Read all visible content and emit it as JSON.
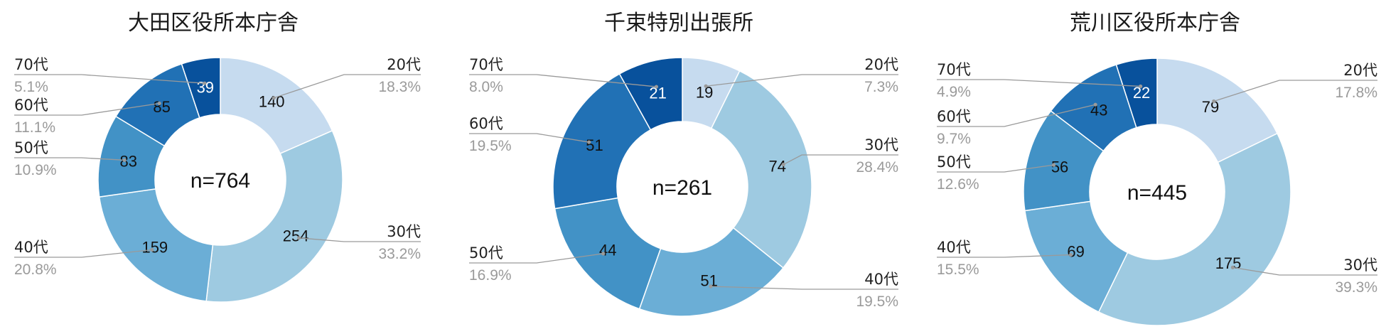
{
  "chart_data": [
    {
      "type": "pie",
      "title": "大田区役所本庁舎",
      "center_label": "n=764",
      "categories": [
        "20代",
        "30代",
        "40代",
        "50代",
        "60代",
        "70代"
      ],
      "values": [
        140,
        254,
        159,
        83,
        85,
        39
      ],
      "value_labels": [
        "140",
        "254",
        "159",
        "83",
        "85",
        "39"
      ],
      "percent_labels": [
        "18.3%",
        "33.2%",
        "20.8%",
        "10.9%",
        "11.1%",
        "5.1%"
      ],
      "colors": [
        "#c6dbef",
        "#9ecae1",
        "#6baed6",
        "#4292c6",
        "#2171b5",
        "#08519c"
      ]
    },
    {
      "type": "pie",
      "title": "千束特別出張所",
      "center_label": "n=261",
      "categories": [
        "20代",
        "30代",
        "40代",
        "50代",
        "60代",
        "70代"
      ],
      "values": [
        19,
        74,
        51,
        44,
        51,
        21
      ],
      "value_labels": [
        "19",
        "74",
        "51",
        "44",
        "51",
        "21"
      ],
      "percent_labels": [
        "7.3%",
        "28.4%",
        "19.5%",
        "16.9%",
        "19.5%",
        "8.0%"
      ],
      "colors": [
        "#c6dbef",
        "#9ecae1",
        "#6baed6",
        "#4292c6",
        "#2171b5",
        "#08519c"
      ]
    },
    {
      "type": "pie",
      "title": "荒川区役所本庁舎",
      "center_label": "n=445",
      "categories": [
        "20代",
        "30代",
        "40代",
        "50代",
        "60代",
        "70代"
      ],
      "values": [
        79,
        175,
        69,
        56,
        43,
        22
      ],
      "value_labels": [
        "79",
        "175",
        "69",
        "56",
        "43",
        "22"
      ],
      "percent_labels": [
        "17.8%",
        "39.3%",
        "15.5%",
        "12.6%",
        "9.7%",
        "4.9%"
      ],
      "colors": [
        "#c6dbef",
        "#9ecae1",
        "#6baed6",
        "#4292c6",
        "#2171b5",
        "#08519c"
      ]
    }
  ]
}
